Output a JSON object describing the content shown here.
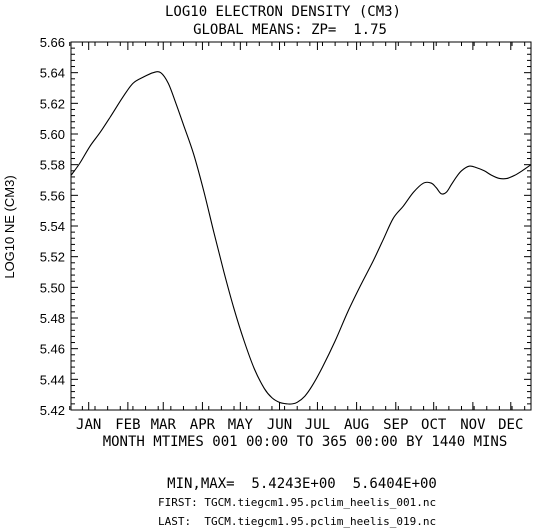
{
  "chart_data": {
    "type": "line",
    "title": "LOG10 ELECTRON DENSITY (CM3)",
    "subtitle": "GLOBAL MEANS: ZP=  1.75",
    "ylabel": "LOG10 NE (CM3)",
    "xlabel": "MONTH MTIMES 001 00:00 TO 365 00:00 BY 1440 MINS",
    "ylim": [
      5.42,
      5.66
    ],
    "yticks": [
      "5.42",
      "5.44",
      "5.46",
      "5.48",
      "5.50",
      "5.52",
      "5.54",
      "5.56",
      "5.58",
      "5.60",
      "5.62",
      "5.64",
      "5.66"
    ],
    "xlim": [
      1,
      365
    ],
    "categories": [
      "JAN",
      "FEB",
      "MAR",
      "APR",
      "MAY",
      "JUN",
      "JUL",
      "AUG",
      "SEP",
      "OCT",
      "NOV",
      "DEC"
    ],
    "category_days": [
      15,
      46,
      74,
      105,
      135,
      166,
      196,
      227,
      258,
      288,
      319,
      349
    ],
    "grid": false,
    "series": [
      {
        "x": [
          1,
          8,
          16,
          24,
          32,
          42,
          50,
          58,
          66,
          72,
          78,
          84,
          90,
          98,
          106,
          114,
          122,
          130,
          138,
          146,
          154,
          160,
          166,
          172,
          176,
          180,
          186,
          192,
          200,
          210,
          220,
          230,
          240,
          248,
          256,
          264,
          272,
          280,
          286,
          290,
          294,
          298,
          302,
          306,
          310,
          316,
          322,
          328,
          334,
          340,
          346,
          352,
          358,
          365
        ],
        "y": [
          5.573,
          5.581,
          5.592,
          5.601,
          5.611,
          5.624,
          5.633,
          5.637,
          5.64,
          5.64,
          5.633,
          5.62,
          5.606,
          5.587,
          5.563,
          5.536,
          5.51,
          5.486,
          5.465,
          5.447,
          5.434,
          5.428,
          5.425,
          5.424,
          5.424,
          5.425,
          5.429,
          5.436,
          5.448,
          5.465,
          5.484,
          5.501,
          5.517,
          5.531,
          5.545,
          5.553,
          5.562,
          5.568,
          5.568,
          5.565,
          5.561,
          5.562,
          5.567,
          5.572,
          5.576,
          5.579,
          5.578,
          5.576,
          5.573,
          5.571,
          5.571,
          5.573,
          5.576,
          5.58
        ]
      }
    ]
  },
  "footer": {
    "minmax": "MIN,MAX=  5.4243E+00  5.6404E+00",
    "first": "FIRST: TGCM.tiegcm1.95.pclim_heelis_001.nc",
    "last": "LAST:  TGCM.tiegcm1.95.pclim_heelis_019.nc"
  }
}
